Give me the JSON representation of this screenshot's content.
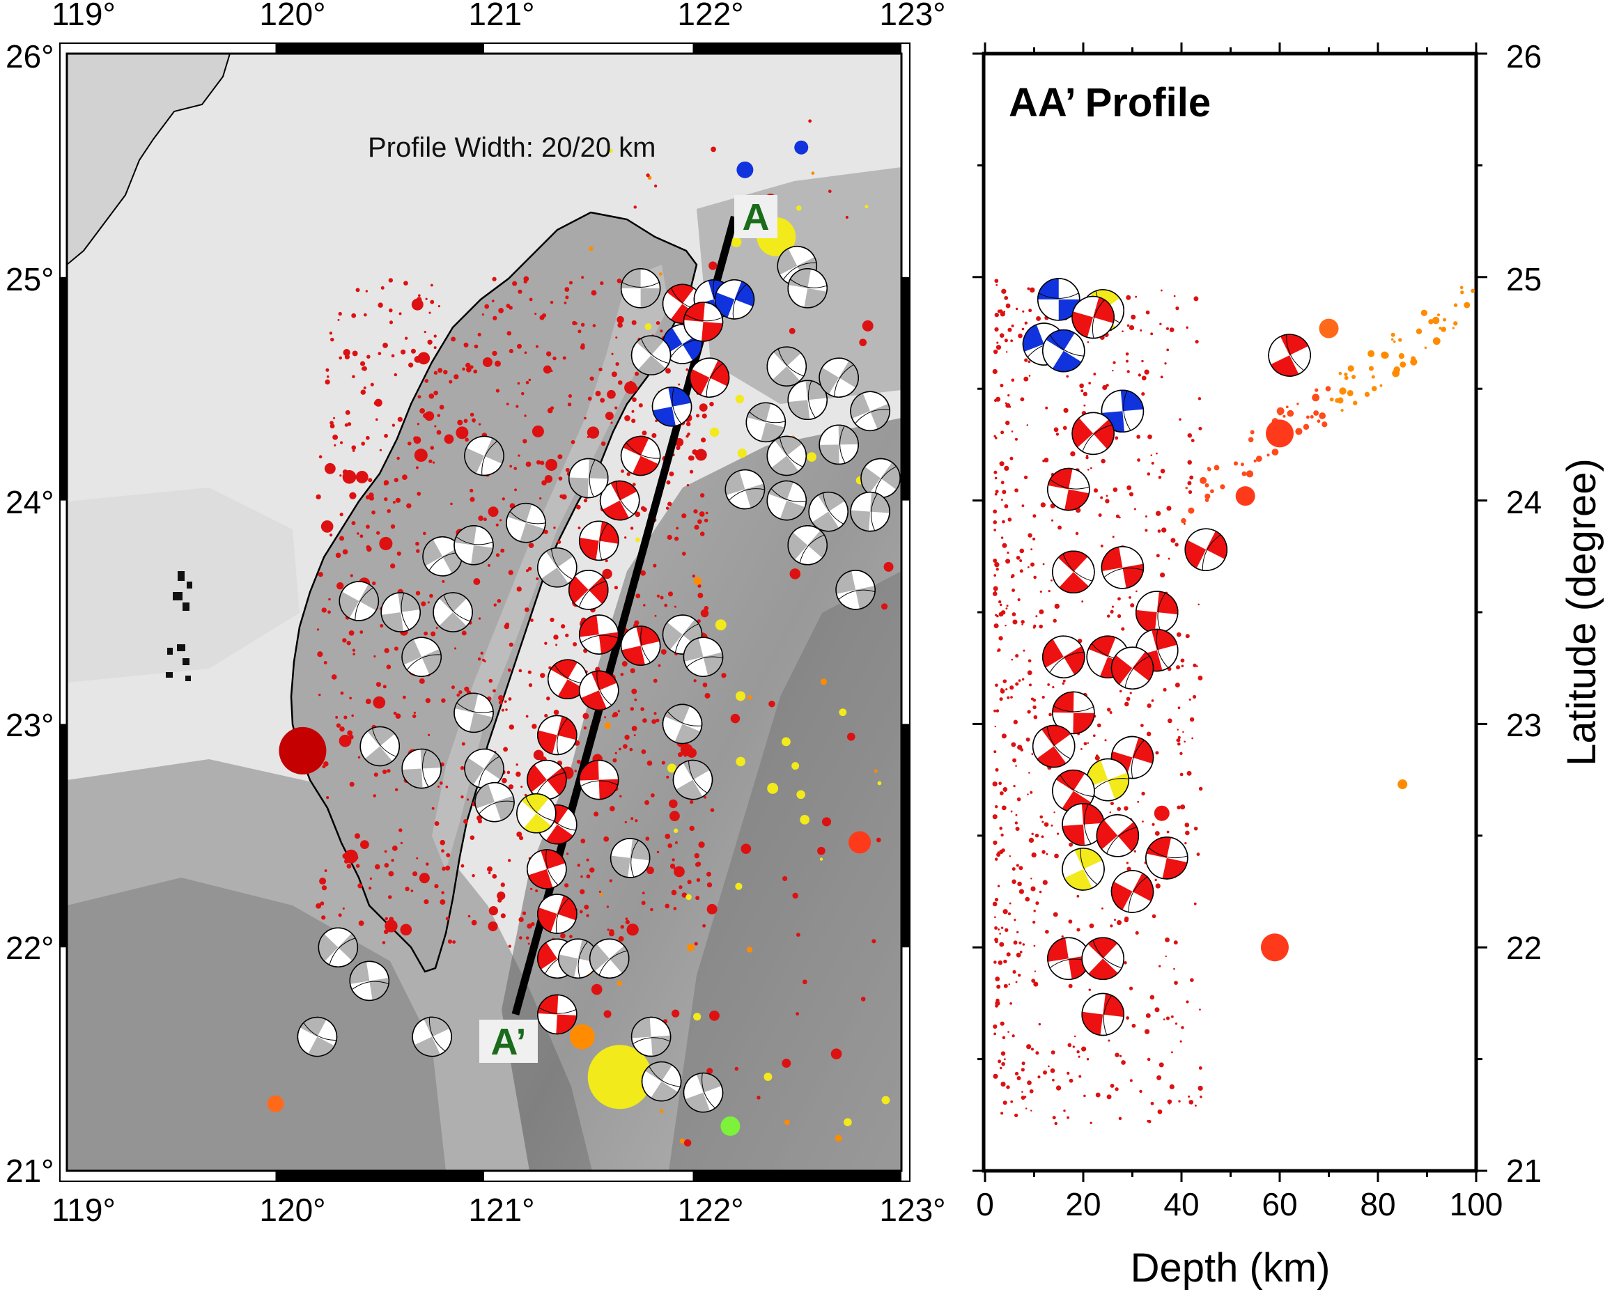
{
  "map": {
    "lon_ticks": [
      "119°",
      "120°",
      "121°",
      "122°",
      "123°"
    ],
    "lat_ticks": [
      "21°",
      "22°",
      "23°",
      "24°",
      "25°",
      "26°"
    ],
    "annotation": "Profile Width: 20/20 km",
    "profile_start_label": "A",
    "profile_end_label": "A’",
    "profile_line": {
      "start": {
        "lon": 122.2,
        "lat": 25.27
      },
      "end": {
        "lon": 121.15,
        "lat": 21.7
      }
    }
  },
  "profile": {
    "title": "AA’ Profile",
    "xlabel": "Depth (km)",
    "ylabel": "Latitude (degree)",
    "x_ticks": [
      "0",
      "20",
      "40",
      "60",
      "80",
      "100"
    ],
    "y_ticks": [
      "21",
      "22",
      "23",
      "24",
      "25",
      "26"
    ]
  },
  "colors": {
    "normal": "#ee1111",
    "thrust": "#1133dd",
    "strike_slip": "#f2ea1a",
    "other": "#b4b4b4",
    "seismicity": "#dd1111",
    "deep": "#ff8c00",
    "label_box": "#f0f0f0",
    "label_text": "#1a6b1a"
  },
  "chart_data": [
    {
      "type": "scatter",
      "name_of_view": "map",
      "xlim": [
        119,
        123
      ],
      "ylim": [
        21,
        26
      ],
      "focal_mechanisms": [
        {
          "lon": 121.75,
          "lat": 24.95,
          "type": "other"
        },
        {
          "lon": 121.95,
          "lat": 24.88,
          "type": "normal"
        },
        {
          "lon": 122.1,
          "lat": 24.9,
          "type": "thrust"
        },
        {
          "lon": 122.2,
          "lat": 24.9,
          "type": "thrust"
        },
        {
          "lon": 121.95,
          "lat": 24.7,
          "type": "thrust"
        },
        {
          "lon": 122.05,
          "lat": 24.8,
          "type": "normal"
        },
        {
          "lon": 121.8,
          "lat": 24.65,
          "type": "other"
        },
        {
          "lon": 121.9,
          "lat": 24.42,
          "type": "thrust"
        },
        {
          "lon": 122.08,
          "lat": 24.55,
          "type": "normal"
        },
        {
          "lon": 122.5,
          "lat": 25.05,
          "type": "other"
        },
        {
          "lon": 122.55,
          "lat": 24.95,
          "type": "other"
        },
        {
          "lon": 122.45,
          "lat": 24.6,
          "type": "other"
        },
        {
          "lon": 122.55,
          "lat": 24.45,
          "type": "other"
        },
        {
          "lon": 122.7,
          "lat": 24.55,
          "type": "other"
        },
        {
          "lon": 122.85,
          "lat": 24.4,
          "type": "other"
        },
        {
          "lon": 122.35,
          "lat": 24.35,
          "type": "other"
        },
        {
          "lon": 122.45,
          "lat": 24.2,
          "type": "other"
        },
        {
          "lon": 122.7,
          "lat": 24.25,
          "type": "other"
        },
        {
          "lon": 122.9,
          "lat": 24.1,
          "type": "other"
        },
        {
          "lon": 122.25,
          "lat": 24.05,
          "type": "other"
        },
        {
          "lon": 122.45,
          "lat": 24.0,
          "type": "other"
        },
        {
          "lon": 122.65,
          "lat": 23.95,
          "type": "other"
        },
        {
          "lon": 122.85,
          "lat": 23.95,
          "type": "other"
        },
        {
          "lon": 122.55,
          "lat": 23.8,
          "type": "other"
        },
        {
          "lon": 122.78,
          "lat": 23.6,
          "type": "other"
        },
        {
          "lon": 121.75,
          "lat": 24.2,
          "type": "normal"
        },
        {
          "lon": 121.65,
          "lat": 24.0,
          "type": "normal"
        },
        {
          "lon": 121.55,
          "lat": 23.82,
          "type": "normal"
        },
        {
          "lon": 121.5,
          "lat": 23.6,
          "type": "normal"
        },
        {
          "lon": 121.55,
          "lat": 23.4,
          "type": "normal"
        },
        {
          "lon": 121.4,
          "lat": 23.2,
          "type": "normal"
        },
        {
          "lon": 121.55,
          "lat": 23.15,
          "type": "normal"
        },
        {
          "lon": 121.35,
          "lat": 22.95,
          "type": "normal"
        },
        {
          "lon": 121.3,
          "lat": 22.75,
          "type": "normal"
        },
        {
          "lon": 121.55,
          "lat": 22.75,
          "type": "normal"
        },
        {
          "lon": 121.35,
          "lat": 22.55,
          "type": "normal"
        },
        {
          "lon": 121.3,
          "lat": 22.35,
          "type": "normal"
        },
        {
          "lon": 121.35,
          "lat": 22.15,
          "type": "normal"
        },
        {
          "lon": 121.35,
          "lat": 21.95,
          "type": "normal"
        },
        {
          "lon": 121.35,
          "lat": 21.7,
          "type": "normal"
        },
        {
          "lon": 121.25,
          "lat": 22.6,
          "type": "strike_slip"
        },
        {
          "lon": 121.75,
          "lat": 23.35,
          "type": "normal"
        },
        {
          "lon": 121.0,
          "lat": 24.2,
          "type": "other"
        },
        {
          "lon": 120.8,
          "lat": 23.75,
          "type": "other"
        },
        {
          "lon": 120.95,
          "lat": 23.8,
          "type": "other"
        },
        {
          "lon": 120.85,
          "lat": 23.5,
          "type": "other"
        },
        {
          "lon": 120.6,
          "lat": 23.5,
          "type": "other"
        },
        {
          "lon": 120.4,
          "lat": 23.55,
          "type": "other"
        },
        {
          "lon": 120.7,
          "lat": 23.3,
          "type": "other"
        },
        {
          "lon": 120.95,
          "lat": 23.05,
          "type": "other"
        },
        {
          "lon": 120.5,
          "lat": 22.9,
          "type": "other"
        },
        {
          "lon": 120.7,
          "lat": 22.8,
          "type": "other"
        },
        {
          "lon": 121.0,
          "lat": 22.8,
          "type": "other"
        },
        {
          "lon": 121.05,
          "lat": 22.65,
          "type": "other"
        },
        {
          "lon": 121.2,
          "lat": 23.9,
          "type": "other"
        },
        {
          "lon": 121.35,
          "lat": 23.7,
          "type": "other"
        },
        {
          "lon": 121.5,
          "lat": 24.1,
          "type": "other"
        },
        {
          "lon": 121.95,
          "lat": 23.4,
          "type": "other"
        },
        {
          "lon": 122.05,
          "lat": 23.3,
          "type": "other"
        },
        {
          "lon": 121.95,
          "lat": 23.0,
          "type": "other"
        },
        {
          "lon": 122.0,
          "lat": 22.75,
          "type": "other"
        },
        {
          "lon": 121.7,
          "lat": 22.4,
          "type": "other"
        },
        {
          "lon": 120.3,
          "lat": 22.0,
          "type": "other"
        },
        {
          "lon": 120.45,
          "lat": 21.85,
          "type": "other"
        },
        {
          "lon": 120.2,
          "lat": 21.6,
          "type": "other"
        },
        {
          "lon": 120.75,
          "lat": 21.6,
          "type": "other"
        },
        {
          "lon": 121.45,
          "lat": 21.95,
          "type": "other"
        },
        {
          "lon": 121.6,
          "lat": 21.95,
          "type": "other"
        },
        {
          "lon": 121.8,
          "lat": 21.6,
          "type": "other"
        },
        {
          "lon": 121.85,
          "lat": 21.4,
          "type": "other"
        },
        {
          "lon": 122.05,
          "lat": 21.35,
          "type": "other"
        }
      ]
    },
    {
      "type": "scatter",
      "name_of_view": "profile",
      "xlim": [
        0,
        100
      ],
      "ylim": [
        21,
        26
      ],
      "focal_mechanisms": [
        {
          "depth": 15,
          "lat": 24.9,
          "type": "thrust"
        },
        {
          "depth": 24,
          "lat": 24.85,
          "type": "strike_slip"
        },
        {
          "depth": 22,
          "lat": 24.82,
          "type": "normal"
        },
        {
          "depth": 12,
          "lat": 24.7,
          "type": "thrust"
        },
        {
          "depth": 16,
          "lat": 24.67,
          "type": "thrust"
        },
        {
          "depth": 28,
          "lat": 24.4,
          "type": "thrust"
        },
        {
          "depth": 22,
          "lat": 24.3,
          "type": "normal"
        },
        {
          "depth": 17,
          "lat": 24.05,
          "type": "normal"
        },
        {
          "depth": 62,
          "lat": 24.65,
          "type": "normal"
        },
        {
          "depth": 45,
          "lat": 23.78,
          "type": "normal"
        },
        {
          "depth": 28,
          "lat": 23.7,
          "type": "normal"
        },
        {
          "depth": 18,
          "lat": 23.68,
          "type": "normal"
        },
        {
          "depth": 35,
          "lat": 23.5,
          "type": "normal"
        },
        {
          "depth": 16,
          "lat": 23.3,
          "type": "normal"
        },
        {
          "depth": 25,
          "lat": 23.3,
          "type": "normal"
        },
        {
          "depth": 35,
          "lat": 23.33,
          "type": "normal"
        },
        {
          "depth": 30,
          "lat": 23.25,
          "type": "normal"
        },
        {
          "depth": 18,
          "lat": 23.05,
          "type": "normal"
        },
        {
          "depth": 14,
          "lat": 22.9,
          "type": "normal"
        },
        {
          "depth": 30,
          "lat": 22.85,
          "type": "normal"
        },
        {
          "depth": 25,
          "lat": 22.75,
          "type": "strike_slip"
        },
        {
          "depth": 18,
          "lat": 22.7,
          "type": "normal"
        },
        {
          "depth": 20,
          "lat": 22.55,
          "type": "normal"
        },
        {
          "depth": 27,
          "lat": 22.5,
          "type": "normal"
        },
        {
          "depth": 37,
          "lat": 22.4,
          "type": "normal"
        },
        {
          "depth": 20,
          "lat": 22.35,
          "type": "strike_slip"
        },
        {
          "depth": 30,
          "lat": 22.25,
          "type": "normal"
        },
        {
          "depth": 17,
          "lat": 21.95,
          "type": "normal"
        },
        {
          "depth": 24,
          "lat": 21.95,
          "type": "normal"
        },
        {
          "depth": 24,
          "lat": 21.7,
          "type": "normal"
        }
      ]
    }
  ]
}
